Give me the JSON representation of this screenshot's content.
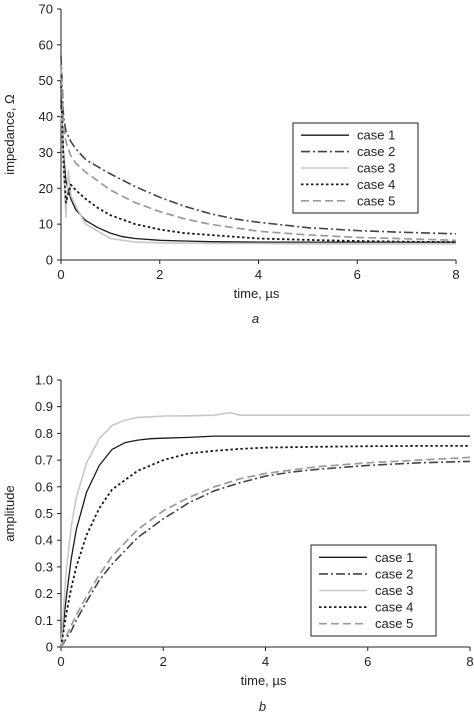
{
  "chart_data": [
    {
      "type": "line",
      "panel_label": "a",
      "xlabel": "time, µs",
      "ylabel": "impedance, Ω",
      "xlim": [
        0,
        8
      ],
      "ylim": [
        0,
        70
      ],
      "xticks": [
        "0",
        "2",
        "4",
        "6",
        "8"
      ],
      "yticks": [
        "0",
        "10",
        "20",
        "30",
        "40",
        "50",
        "60",
        "70"
      ],
      "legend_position": "right",
      "series": [
        {
          "name": "case 1",
          "x": [
            0,
            0.05,
            0.1,
            0.2,
            0.3,
            0.5,
            0.75,
            1,
            1.25,
            1.5,
            2,
            2.5,
            3,
            4,
            5,
            6,
            7,
            8
          ],
          "values": [
            45,
            30,
            22,
            17,
            14,
            11,
            9,
            7.5,
            6.5,
            6,
            5.5,
            5.3,
            5.1,
            5,
            5,
            5,
            5,
            5
          ]
        },
        {
          "name": "case 2",
          "x": [
            0,
            0.05,
            0.1,
            0.2,
            0.3,
            0.5,
            0.75,
            1,
            1.5,
            2,
            2.5,
            3,
            3.5,
            4,
            5,
            6,
            7,
            8
          ],
          "values": [
            57,
            40,
            36,
            33,
            31,
            28,
            26,
            24,
            20.5,
            17.5,
            15,
            13,
            11.5,
            10.5,
            9,
            8.2,
            7.7,
            7.3
          ]
        },
        {
          "name": "case 3",
          "x": [
            0,
            0.05,
            0.1,
            0.15,
            0.2,
            0.3,
            0.5,
            0.75,
            1,
            1.25,
            1.5,
            2,
            2.5,
            3,
            4,
            5,
            6,
            7,
            8
          ],
          "values": [
            42,
            28,
            12,
            25,
            18,
            15,
            10,
            8,
            6,
            5.5,
            5,
            4.8,
            4.7,
            4.6,
            4.6,
            4.5,
            4.5,
            4.5,
            4.5
          ]
        },
        {
          "name": "case 4",
          "x": [
            0,
            0.05,
            0.1,
            0.2,
            0.3,
            0.5,
            0.75,
            1,
            1.5,
            2,
            2.5,
            3,
            4,
            5,
            6,
            7,
            8
          ],
          "values": [
            50,
            27,
            16,
            21,
            19.5,
            17,
            14.5,
            12.5,
            10,
            8.5,
            7.5,
            7,
            6,
            5.6,
            5.3,
            5.1,
            5
          ]
        },
        {
          "name": "case 5",
          "x": [
            0,
            0.05,
            0.1,
            0.2,
            0.3,
            0.5,
            0.75,
            1,
            1.5,
            2,
            2.5,
            3,
            3.5,
            4,
            5,
            6,
            7,
            8
          ],
          "values": [
            54,
            38,
            33,
            29,
            27,
            24.5,
            22,
            19.5,
            16,
            13.5,
            11.5,
            10,
            9,
            8,
            7,
            6.3,
            5.9,
            5.5
          ]
        }
      ]
    },
    {
      "type": "line",
      "panel_label": "b",
      "xlabel": "time, µs",
      "ylabel": "amplitude",
      "xlim": [
        0,
        8
      ],
      "ylim": [
        0,
        1.0
      ],
      "xticks": [
        "0",
        "2",
        "4",
        "6",
        "8"
      ],
      "yticks": [
        "0",
        "0.1",
        "0.2",
        "0.3",
        "0.4",
        "0.5",
        "0.6",
        "0.7",
        "0.8",
        "0.9",
        "1.0"
      ],
      "legend_position": "bottom-right",
      "series": [
        {
          "name": "case 1",
          "x": [
            0,
            0.1,
            0.2,
            0.3,
            0.5,
            0.75,
            1,
            1.25,
            1.5,
            1.75,
            2,
            2.5,
            3,
            4,
            5,
            6,
            7,
            8
          ],
          "values": [
            0,
            0.18,
            0.33,
            0.44,
            0.58,
            0.68,
            0.74,
            0.765,
            0.775,
            0.78,
            0.782,
            0.785,
            0.79,
            0.79,
            0.79,
            0.79,
            0.79,
            0.79
          ]
        },
        {
          "name": "case 2",
          "x": [
            0,
            0.1,
            0.2,
            0.3,
            0.5,
            0.75,
            1,
            1.5,
            2,
            2.5,
            3,
            3.5,
            4,
            4.5,
            5,
            6,
            7,
            8
          ],
          "values": [
            0,
            0.03,
            0.06,
            0.1,
            0.17,
            0.25,
            0.31,
            0.41,
            0.48,
            0.54,
            0.585,
            0.615,
            0.64,
            0.655,
            0.665,
            0.68,
            0.69,
            0.695
          ]
        },
        {
          "name": "case 3",
          "x": [
            0,
            0.1,
            0.2,
            0.3,
            0.5,
            0.75,
            1,
            1.25,
            1.5,
            1.75,
            2,
            2.5,
            3,
            3.3,
            3.5,
            4,
            5,
            6,
            7,
            8
          ],
          "values": [
            0,
            0.28,
            0.45,
            0.56,
            0.69,
            0.78,
            0.83,
            0.85,
            0.86,
            0.862,
            0.865,
            0.866,
            0.868,
            0.878,
            0.868,
            0.868,
            0.868,
            0.868,
            0.868,
            0.868
          ]
        },
        {
          "name": "case 4",
          "x": [
            0,
            0.1,
            0.2,
            0.3,
            0.5,
            0.75,
            1,
            1.5,
            2,
            2.5,
            3,
            3.5,
            4,
            5,
            6,
            7,
            8
          ],
          "values": [
            0,
            0.12,
            0.22,
            0.3,
            0.42,
            0.52,
            0.59,
            0.66,
            0.7,
            0.725,
            0.735,
            0.742,
            0.747,
            0.75,
            0.752,
            0.753,
            0.753
          ]
        },
        {
          "name": "case 5",
          "x": [
            0,
            0.1,
            0.2,
            0.3,
            0.5,
            0.75,
            1,
            1.5,
            2,
            2.5,
            3,
            3.5,
            4,
            5,
            6,
            7,
            8
          ],
          "values": [
            0,
            0.04,
            0.08,
            0.12,
            0.19,
            0.27,
            0.34,
            0.44,
            0.51,
            0.56,
            0.6,
            0.63,
            0.65,
            0.675,
            0.69,
            0.7,
            0.71
          ]
        }
      ]
    }
  ]
}
